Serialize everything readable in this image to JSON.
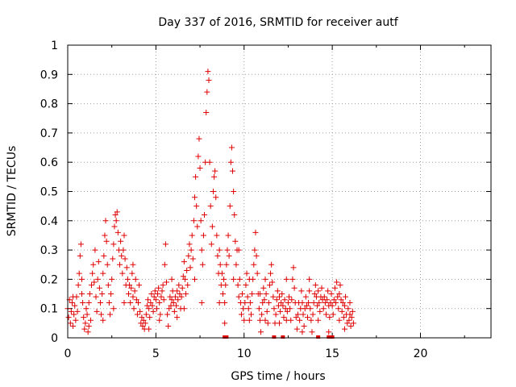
{
  "chart_data": {
    "type": "scatter",
    "title": "Day 337 of 2016, SRMTID for receiver autf",
    "xlabel": "GPS time / hours",
    "ylabel": "SRMTID / TECUs",
    "xlim": [
      0,
      24
    ],
    "ylim": [
      0,
      1
    ],
    "x_ticks": [
      "0",
      "5",
      "10",
      "15",
      "20"
    ],
    "y_ticks": [
      "0",
      "0.1",
      "0.2",
      "0.3",
      "0.4",
      "0.5",
      "0.6",
      "0.7",
      "0.8",
      "0.9",
      "1"
    ],
    "grid": true,
    "marker": "plus",
    "series_color": "#e00000",
    "points": [
      [
        0.0,
        0.1
      ],
      [
        0.05,
        0.07
      ],
      [
        0.1,
        0.13
      ],
      [
        0.15,
        0.05
      ],
      [
        0.2,
        0.09
      ],
      [
        0.25,
        0.12
      ],
      [
        0.3,
        0.04
      ],
      [
        0.35,
        0.08
      ],
      [
        0.4,
        0.11
      ],
      [
        0.45,
        0.06
      ],
      [
        0.5,
        0.14
      ],
      [
        0.55,
        0.09
      ],
      [
        0.6,
        0.18
      ],
      [
        0.65,
        0.22
      ],
      [
        0.7,
        0.28
      ],
      [
        0.75,
        0.32
      ],
      [
        0.8,
        0.2
      ],
      [
        0.85,
        0.12
      ],
      [
        0.9,
        0.07
      ],
      [
        0.95,
        0.03
      ],
      [
        1.0,
        0.05
      ],
      [
        1.05,
        0.1
      ],
      [
        1.1,
        0.08
      ],
      [
        1.15,
        0.02
      ],
      [
        1.2,
        0.12
      ],
      [
        1.25,
        0.15
      ],
      [
        1.3,
        0.06
      ],
      [
        1.35,
        0.18
      ],
      [
        1.4,
        0.22
      ],
      [
        1.45,
        0.25
      ],
      [
        1.5,
        0.19
      ],
      [
        1.55,
        0.3
      ],
      [
        1.6,
        0.14
      ],
      [
        1.65,
        0.09
      ],
      [
        1.7,
        0.2
      ],
      [
        1.75,
        0.26
      ],
      [
        1.8,
        0.17
      ],
      [
        1.85,
        0.12
      ],
      [
        1.9,
        0.08
      ],
      [
        1.95,
        0.15
      ],
      [
        2.0,
        0.22
      ],
      [
        2.05,
        0.28
      ],
      [
        2.1,
        0.35
      ],
      [
        2.15,
        0.4
      ],
      [
        2.2,
        0.33
      ],
      [
        2.25,
        0.25
      ],
      [
        2.3,
        0.18
      ],
      [
        2.35,
        0.12
      ],
      [
        2.4,
        0.08
      ],
      [
        2.45,
        0.15
      ],
      [
        2.5,
        0.2
      ],
      [
        2.55,
        0.27
      ],
      [
        2.6,
        0.32
      ],
      [
        2.65,
        0.38
      ],
      [
        2.7,
        0.42
      ],
      [
        2.75,
        0.4
      ],
      [
        2.8,
        0.43
      ],
      [
        2.85,
        0.36
      ],
      [
        2.9,
        0.3
      ],
      [
        2.95,
        0.25
      ],
      [
        3.0,
        0.33
      ],
      [
        3.05,
        0.28
      ],
      [
        3.1,
        0.22
      ],
      [
        3.15,
        0.3
      ],
      [
        3.2,
        0.35
      ],
      [
        3.25,
        0.27
      ],
      [
        3.3,
        0.18
      ],
      [
        3.35,
        0.24
      ],
      [
        3.4,
        0.2
      ],
      [
        3.45,
        0.15
      ],
      [
        3.5,
        0.18
      ],
      [
        3.55,
        0.12
      ],
      [
        3.6,
        0.17
      ],
      [
        3.65,
        0.22
      ],
      [
        3.7,
        0.14
      ],
      [
        3.75,
        0.1
      ],
      [
        3.8,
        0.16
      ],
      [
        3.85,
        0.2
      ],
      [
        3.9,
        0.13
      ],
      [
        3.95,
        0.08
      ],
      [
        4.0,
        0.12
      ],
      [
        4.05,
        0.18
      ],
      [
        4.1,
        0.09
      ],
      [
        4.15,
        0.05
      ],
      [
        4.2,
        0.07
      ],
      [
        4.25,
        0.04
      ],
      [
        4.3,
        0.06
      ],
      [
        4.35,
        0.03
      ],
      [
        4.4,
        0.05
      ],
      [
        4.45,
        0.08
      ],
      [
        4.5,
        0.11
      ],
      [
        4.55,
        0.13
      ],
      [
        4.6,
        0.1
      ],
      [
        4.65,
        0.07
      ],
      [
        4.7,
        0.12
      ],
      [
        4.75,
        0.15
      ],
      [
        4.8,
        0.11
      ],
      [
        4.85,
        0.09
      ],
      [
        4.9,
        0.14
      ],
      [
        4.95,
        0.16
      ],
      [
        5.0,
        0.13
      ],
      [
        5.05,
        0.1
      ],
      [
        5.1,
        0.15
      ],
      [
        5.15,
        0.17
      ],
      [
        5.2,
        0.12
      ],
      [
        5.25,
        0.08
      ],
      [
        5.3,
        0.14
      ],
      [
        5.35,
        0.16
      ],
      [
        5.4,
        0.18
      ],
      [
        5.45,
        0.13
      ],
      [
        5.5,
        0.25
      ],
      [
        5.55,
        0.32
      ],
      [
        5.6,
        0.19
      ],
      [
        5.65,
        0.08
      ],
      [
        5.7,
        0.04
      ],
      [
        5.75,
        0.1
      ],
      [
        5.8,
        0.14
      ],
      [
        5.85,
        0.11
      ],
      [
        5.9,
        0.13
      ],
      [
        5.95,
        0.16
      ],
      [
        6.0,
        0.12
      ],
      [
        6.05,
        0.09
      ],
      [
        6.1,
        0.14
      ],
      [
        6.15,
        0.11
      ],
      [
        6.2,
        0.07
      ],
      [
        6.25,
        0.13
      ],
      [
        6.3,
        0.18
      ],
      [
        6.35,
        0.15
      ],
      [
        6.4,
        0.1
      ],
      [
        6.45,
        0.14
      ],
      [
        6.5,
        0.17
      ],
      [
        6.55,
        0.21
      ],
      [
        6.6,
        0.26
      ],
      [
        6.65,
        0.2
      ],
      [
        6.7,
        0.15
      ],
      [
        6.75,
        0.23
      ],
      [
        6.8,
        0.18
      ],
      [
        6.85,
        0.28
      ],
      [
        6.9,
        0.32
      ],
      [
        6.95,
        0.24
      ],
      [
        7.0,
        0.3
      ],
      [
        7.05,
        0.35
      ],
      [
        7.1,
        0.27
      ],
      [
        7.15,
        0.4
      ],
      [
        7.2,
        0.48
      ],
      [
        7.25,
        0.55
      ],
      [
        7.3,
        0.45
      ],
      [
        7.35,
        0.38
      ],
      [
        7.4,
        0.62
      ],
      [
        7.45,
        0.68
      ],
      [
        7.5,
        0.58
      ],
      [
        7.55,
        0.4
      ],
      [
        7.6,
        0.3
      ],
      [
        7.65,
        0.25
      ],
      [
        7.7,
        0.35
      ],
      [
        7.75,
        0.42
      ],
      [
        7.8,
        0.6
      ],
      [
        7.85,
        0.77
      ],
      [
        7.9,
        0.84
      ],
      [
        7.95,
        0.91
      ],
      [
        8.0,
        0.88
      ],
      [
        8.05,
        0.6
      ],
      [
        8.1,
        0.45
      ],
      [
        8.15,
        0.32
      ],
      [
        8.2,
        0.38
      ],
      [
        8.25,
        0.5
      ],
      [
        8.3,
        0.55
      ],
      [
        8.35,
        0.57
      ],
      [
        8.4,
        0.48
      ],
      [
        8.45,
        0.35
      ],
      [
        8.5,
        0.28
      ],
      [
        8.55,
        0.22
      ],
      [
        8.6,
        0.3
      ],
      [
        8.65,
        0.25
      ],
      [
        8.7,
        0.18
      ],
      [
        8.75,
        0.22
      ],
      [
        8.8,
        0.15
      ],
      [
        8.85,
        0.2
      ],
      [
        8.9,
        0.12
      ],
      [
        8.95,
        0.18
      ],
      [
        9.0,
        0.25
      ],
      [
        9.05,
        0.3
      ],
      [
        9.1,
        0.35
      ],
      [
        9.15,
        0.28
      ],
      [
        9.2,
        0.45
      ],
      [
        9.25,
        0.6
      ],
      [
        9.3,
        0.65
      ],
      [
        9.35,
        0.57
      ],
      [
        9.4,
        0.5
      ],
      [
        9.45,
        0.42
      ],
      [
        9.5,
        0.33
      ],
      [
        9.55,
        0.25
      ],
      [
        9.6,
        0.3
      ],
      [
        9.65,
        0.18
      ],
      [
        9.7,
        0.14
      ],
      [
        9.75,
        0.2
      ],
      [
        9.8,
        0.12
      ],
      [
        9.85,
        0.08
      ],
      [
        9.9,
        0.15
      ],
      [
        9.95,
        0.1
      ],
      [
        10.0,
        0.06
      ],
      [
        10.05,
        0.12
      ],
      [
        10.1,
        0.18
      ],
      [
        10.15,
        0.22
      ],
      [
        10.2,
        0.14
      ],
      [
        10.25,
        0.1
      ],
      [
        10.3,
        0.06
      ],
      [
        10.35,
        0.12
      ],
      [
        10.4,
        0.08
      ],
      [
        10.45,
        0.15
      ],
      [
        10.5,
        0.2
      ],
      [
        10.55,
        0.25
      ],
      [
        10.6,
        0.3
      ],
      [
        10.65,
        0.36
      ],
      [
        10.7,
        0.28
      ],
      [
        10.75,
        0.22
      ],
      [
        10.8,
        0.15
      ],
      [
        10.85,
        0.1
      ],
      [
        10.9,
        0.06
      ],
      [
        10.95,
        0.02
      ],
      [
        11.0,
        0.08
      ],
      [
        11.05,
        0.12
      ],
      [
        11.1,
        0.17
      ],
      [
        11.15,
        0.13
      ],
      [
        11.2,
        0.2
      ],
      [
        11.25,
        0.15
      ],
      [
        11.3,
        0.09
      ],
      [
        11.35,
        0.05
      ],
      [
        11.4,
        0.12
      ],
      [
        11.45,
        0.18
      ],
      [
        11.5,
        0.22
      ],
      [
        11.55,
        0.25
      ],
      [
        11.6,
        0.19
      ],
      [
        11.65,
        0.14
      ],
      [
        11.7,
        0.1
      ],
      [
        11.75,
        0.05
      ],
      [
        11.8,
        0.08
      ],
      [
        11.85,
        0.13
      ],
      [
        11.9,
        0.16
      ],
      [
        11.95,
        0.11
      ],
      [
        12.0,
        0.14
      ],
      [
        12.05,
        0.09
      ],
      [
        12.1,
        0.12
      ],
      [
        12.15,
        0.15
      ],
      [
        12.2,
        0.11
      ],
      [
        12.25,
        0.07
      ],
      [
        12.3,
        0.13
      ],
      [
        12.35,
        0.1
      ],
      [
        12.4,
        0.06
      ],
      [
        12.45,
        0.09
      ],
      [
        12.5,
        0.12
      ],
      [
        12.55,
        0.14
      ],
      [
        12.6,
        0.1
      ],
      [
        12.65,
        0.06
      ],
      [
        12.7,
        0.13
      ],
      [
        12.75,
        0.2
      ],
      [
        12.8,
        0.24
      ],
      [
        12.85,
        0.17
      ],
      [
        12.9,
        0.12
      ],
      [
        12.95,
        0.07
      ],
      [
        13.0,
        0.03
      ],
      [
        13.05,
        0.08
      ],
      [
        13.1,
        0.12
      ],
      [
        13.15,
        0.06
      ],
      [
        13.2,
        0.1
      ],
      [
        13.25,
        0.16
      ],
      [
        13.3,
        0.12
      ],
      [
        13.35,
        0.08
      ],
      [
        13.4,
        0.04
      ],
      [
        13.45,
        0.1
      ],
      [
        13.5,
        0.14
      ],
      [
        13.55,
        0.11
      ],
      [
        13.6,
        0.07
      ],
      [
        13.65,
        0.12
      ],
      [
        13.7,
        0.16
      ],
      [
        13.75,
        0.1
      ],
      [
        13.8,
        0.06
      ],
      [
        13.85,
        0.02
      ],
      [
        13.9,
        0.08
      ],
      [
        13.95,
        0.12
      ],
      [
        14.0,
        0.15
      ],
      [
        14.05,
        0.18
      ],
      [
        14.1,
        0.14
      ],
      [
        14.15,
        0.11
      ],
      [
        14.2,
        0.16
      ],
      [
        14.25,
        0.12
      ],
      [
        14.3,
        0.09
      ],
      [
        14.35,
        0.14
      ],
      [
        14.4,
        0.17
      ],
      [
        14.45,
        0.13
      ],
      [
        14.5,
        0.1
      ],
      [
        14.55,
        0.14
      ],
      [
        14.6,
        0.12
      ],
      [
        14.65,
        0.08
      ],
      [
        14.7,
        0.13
      ],
      [
        14.75,
        0.16
      ],
      [
        14.8,
        0.11
      ],
      [
        14.85,
        0.07
      ],
      [
        14.9,
        0.12
      ],
      [
        14.95,
        0.15
      ],
      [
        15.0,
        0.11
      ],
      [
        15.05,
        0.08
      ],
      [
        15.1,
        0.13
      ],
      [
        15.15,
        0.17
      ],
      [
        15.2,
        0.12
      ],
      [
        15.25,
        0.19
      ],
      [
        15.3,
        0.14
      ],
      [
        15.35,
        0.1
      ],
      [
        15.4,
        0.15
      ],
      [
        15.45,
        0.18
      ],
      [
        15.5,
        0.13
      ],
      [
        15.55,
        0.09
      ],
      [
        15.6,
        0.12
      ],
      [
        15.65,
        0.07
      ],
      [
        15.7,
        0.11
      ],
      [
        15.75,
        0.14
      ],
      [
        15.8,
        0.08
      ],
      [
        15.85,
        0.05
      ],
      [
        15.9,
        0.1
      ],
      [
        15.95,
        0.06
      ],
      [
        16.0,
        0.08
      ],
      [
        16.05,
        0.04
      ],
      [
        16.1,
        0.07
      ],
      [
        16.15,
        0.09
      ],
      [
        16.2,
        0.05
      ],
      [
        0.3,
        0.14
      ],
      [
        1.2,
        0.04
      ],
      [
        2.6,
        0.1
      ],
      [
        3.7,
        0.25
      ],
      [
        4.6,
        0.03
      ],
      [
        5.9,
        0.2
      ],
      [
        6.6,
        0.1
      ],
      [
        7.2,
        0.2
      ],
      [
        8.6,
        0.12
      ],
      [
        9.7,
        0.3
      ],
      [
        10.3,
        0.2
      ],
      [
        11.2,
        0.06
      ],
      [
        12.4,
        0.2
      ],
      [
        13.3,
        0.02
      ],
      [
        14.2,
        0.06
      ],
      [
        15.4,
        0.06
      ],
      [
        16.0,
        0.12
      ],
      [
        0.8,
        0.15
      ],
      [
        2.0,
        0.06
      ],
      [
        3.2,
        0.12
      ],
      [
        5.2,
        0.06
      ],
      [
        6.2,
        0.16
      ],
      [
        7.6,
        0.12
      ],
      [
        8.9,
        0.05
      ],
      [
        9.4,
        0.2
      ],
      [
        10.9,
        0.15
      ],
      [
        12.0,
        0.05
      ],
      [
        13.7,
        0.2
      ],
      [
        14.8,
        0.02
      ],
      [
        15.7,
        0.03
      ]
    ],
    "zero_points": [
      8.9,
      9.0,
      11.7,
      12.2,
      14.2,
      14.8,
      15.0
    ]
  }
}
